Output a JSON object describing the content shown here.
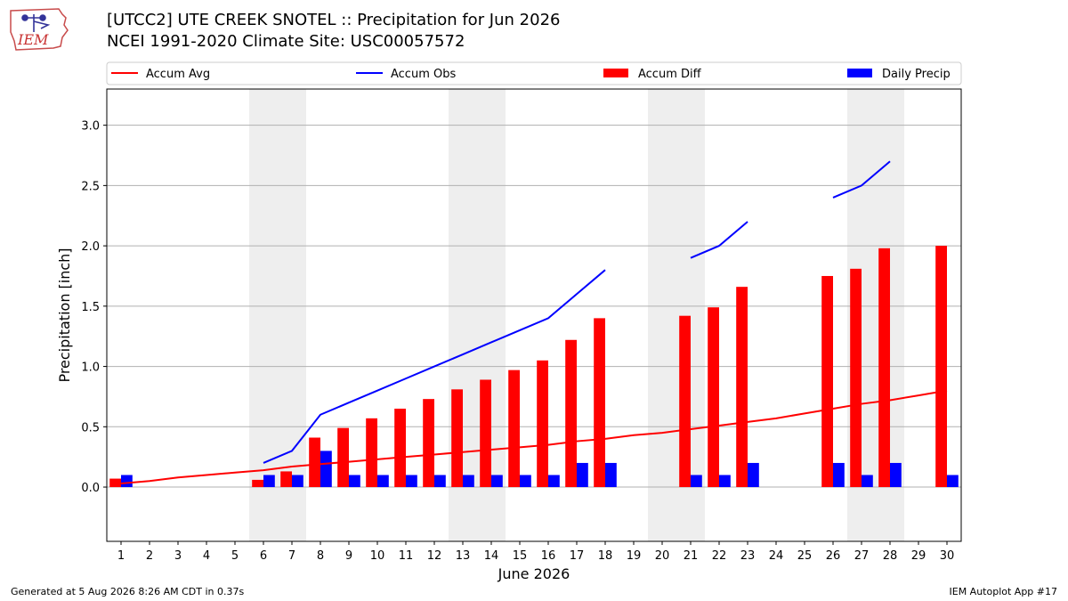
{
  "header": {
    "logo_text": "IEM",
    "title_line1": "[UTCC2] UTE CREEK SNOTEL :: Precipitation for Jun 2026",
    "title_line2": "NCEI 1991-2020 Climate Site: USC00057572"
  },
  "footer": {
    "left": "Generated at 5 Aug 2026 8:26 AM CDT in 0.37s",
    "right": "IEM Autoplot App #17"
  },
  "colors": {
    "accum_avg": "#ff0000",
    "accum_obs": "#0000ff",
    "accum_diff": "#ff0000",
    "daily_precip": "#0000ff",
    "weekend_shade": "#eeeeee",
    "grid": "#b0b0b0"
  },
  "chart_data": {
    "type": "bar",
    "xlabel": "June 2026",
    "ylabel": "Precipitation [inch]",
    "xlim": [
      0.5,
      30.5
    ],
    "ylim": [
      -0.45,
      3.3
    ],
    "yticks": [
      0.0,
      0.5,
      1.0,
      1.5,
      2.0,
      2.5,
      3.0
    ],
    "ytick_labels": [
      "0.0",
      "0.5",
      "1.0",
      "1.5",
      "2.0",
      "2.5",
      "3.0"
    ],
    "grid": "horizontal",
    "legend_placement": "top",
    "days": [
      1,
      2,
      3,
      4,
      5,
      6,
      7,
      8,
      9,
      10,
      11,
      12,
      13,
      14,
      15,
      16,
      17,
      18,
      19,
      20,
      21,
      22,
      23,
      24,
      25,
      26,
      27,
      28,
      29,
      30
    ],
    "shaded_day_ranges": [
      [
        6,
        7
      ],
      [
        13,
        14
      ],
      [
        20,
        21
      ],
      [
        27,
        28
      ]
    ],
    "legend": [
      {
        "label": "Accum Avg",
        "kind": "line",
        "color": "#ff0000"
      },
      {
        "label": "Accum Obs",
        "kind": "line",
        "color": "#0000ff"
      },
      {
        "label": "Accum Diff",
        "kind": "bar",
        "color": "#ff0000"
      },
      {
        "label": "Daily Precip",
        "kind": "bar",
        "color": "#0000ff"
      }
    ],
    "series": [
      {
        "name": "Accum Avg",
        "type": "line",
        "x": [
          1,
          2,
          3,
          4,
          5,
          6,
          7,
          8,
          9,
          10,
          11,
          12,
          13,
          14,
          15,
          16,
          17,
          18,
          19,
          20,
          21,
          22,
          23,
          24,
          25,
          26,
          27,
          28,
          29,
          30
        ],
        "values": [
          0.03,
          0.05,
          0.08,
          0.1,
          0.12,
          0.14,
          0.17,
          0.19,
          0.21,
          0.23,
          0.25,
          0.27,
          0.29,
          0.31,
          0.33,
          0.35,
          0.38,
          0.4,
          0.43,
          0.45,
          0.48,
          0.51,
          0.54,
          0.57,
          0.61,
          0.65,
          0.69,
          0.72,
          0.76,
          0.8
        ]
      },
      {
        "name": "Accum Obs",
        "type": "line",
        "segments": [
          {
            "x": [
              6,
              7,
              8,
              9,
              10,
              11,
              12,
              13,
              14,
              15,
              16,
              17,
              18
            ],
            "values": [
              0.2,
              0.3,
              0.6,
              0.7,
              0.8,
              0.9,
              1.0,
              1.1,
              1.2,
              1.3,
              1.4,
              1.6,
              1.8
            ]
          },
          {
            "x": [
              21,
              22,
              23
            ],
            "values": [
              1.9,
              2.0,
              2.2
            ]
          },
          {
            "x": [
              26,
              27,
              28
            ],
            "values": [
              2.4,
              2.5,
              2.7
            ]
          }
        ]
      },
      {
        "name": "Accum Diff",
        "type": "bar",
        "x": [
          1,
          6,
          7,
          8,
          9,
          10,
          11,
          12,
          13,
          14,
          15,
          16,
          17,
          18,
          21,
          22,
          23,
          26,
          27,
          28,
          30
        ],
        "values": [
          0.07,
          0.06,
          0.13,
          0.41,
          0.49,
          0.57,
          0.65,
          0.73,
          0.81,
          0.89,
          0.97,
          1.05,
          1.22,
          1.4,
          1.42,
          1.49,
          1.66,
          1.75,
          1.81,
          1.98,
          2.0
        ]
      },
      {
        "name": "Daily Precip",
        "type": "bar",
        "x": [
          1,
          6,
          7,
          8,
          9,
          10,
          11,
          12,
          13,
          14,
          15,
          16,
          17,
          18,
          21,
          22,
          23,
          26,
          27,
          28,
          30
        ],
        "values": [
          0.1,
          0.1,
          0.1,
          0.3,
          0.1,
          0.1,
          0.1,
          0.1,
          0.1,
          0.1,
          0.1,
          0.1,
          0.2,
          0.2,
          0.1,
          0.1,
          0.2,
          0.2,
          0.1,
          0.2,
          0.1
        ]
      }
    ]
  }
}
